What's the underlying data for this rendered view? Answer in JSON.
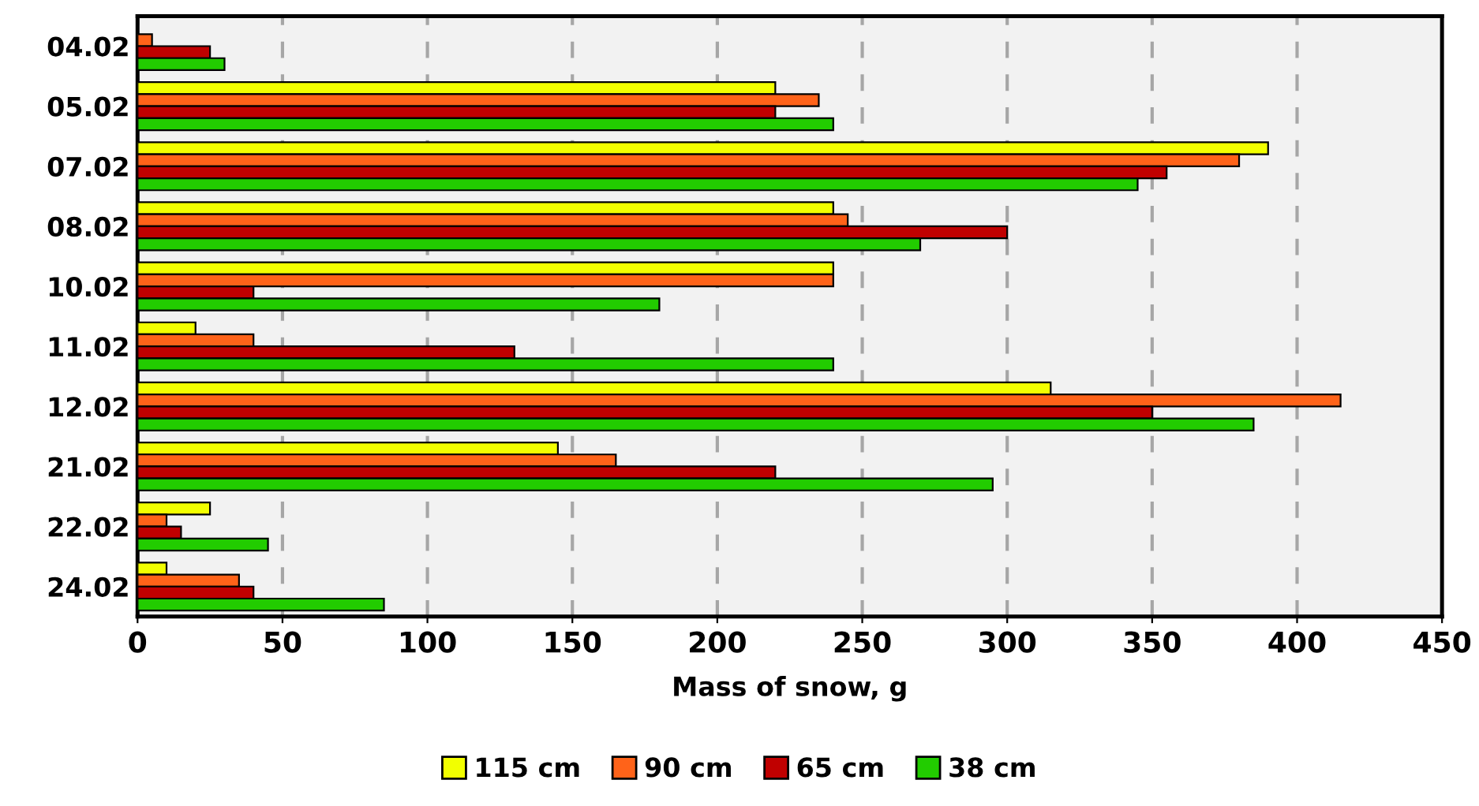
{
  "chart_data": {
    "type": "bar",
    "orientation": "horizontal",
    "xlabel": "Mass of snow, g",
    "categories": [
      "04.02",
      "05.02",
      "07.02",
      "08.02",
      "10.02",
      "11.02",
      "12.02",
      "21.02",
      "22.02",
      "24.02"
    ],
    "series": [
      {
        "name": "115 cm",
        "color": "#f2ff00",
        "values": [
          null,
          220,
          390,
          240,
          240,
          20,
          315,
          145,
          25,
          10
        ]
      },
      {
        "name": "90 cm",
        "color": "#ff6319",
        "values": [
          5,
          235,
          380,
          245,
          240,
          40,
          415,
          165,
          10,
          35
        ]
      },
      {
        "name": "65 cm",
        "color": "#c00000",
        "values": [
          25,
          220,
          355,
          300,
          40,
          130,
          350,
          220,
          15,
          40
        ]
      },
      {
        "name": "38 cm",
        "color": "#22cc00",
        "values": [
          30,
          240,
          345,
          270,
          180,
          240,
          385,
          295,
          45,
          85
        ]
      }
    ],
    "xlim": [
      0,
      450
    ],
    "xticks": [
      0,
      50,
      100,
      150,
      200,
      250,
      300,
      350,
      400,
      450
    ],
    "grid": "x",
    "legend": "bottom"
  }
}
